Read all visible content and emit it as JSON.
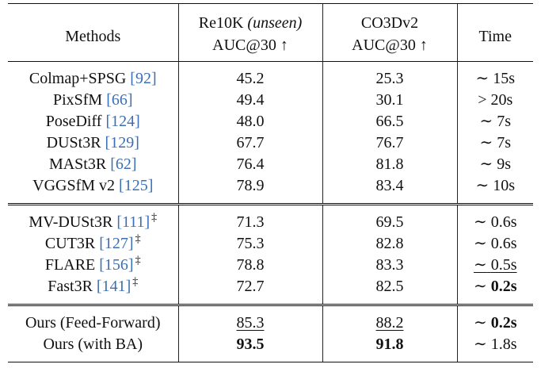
{
  "header": {
    "methods": "Methods",
    "re10k_name": "Re10K",
    "re10k_note": "(unseen)",
    "re10k_metric": "AUC@30 ↑",
    "co3d_name": "CO3Dv2",
    "co3d_metric": "AUC@30 ↑",
    "time": "Time"
  },
  "sections": [
    {
      "rows": [
        {
          "method": "Colmap+SPSG",
          "ref": "[92]",
          "dagger": "",
          "re10k": "45.2",
          "co3d": "25.3",
          "time_sym": "∼",
          "time": "15s",
          "style": {}
        },
        {
          "method": "PixSfM",
          "ref": "[66]",
          "dagger": "",
          "re10k": "49.4",
          "co3d": "30.1",
          "time_sym": ">",
          "time": "20s",
          "style": {}
        },
        {
          "method": "PoseDiff",
          "ref": "[124]",
          "dagger": "",
          "re10k": "48.0",
          "co3d": "66.5",
          "time_sym": "∼",
          "time": "7s",
          "style": {}
        },
        {
          "method": "DUSt3R",
          "ref": "[129]",
          "dagger": "",
          "re10k": "67.7",
          "co3d": "76.7",
          "time_sym": "∼",
          "time": "7s",
          "style": {}
        },
        {
          "method": "MASt3R",
          "ref": "[62]",
          "dagger": "",
          "re10k": "76.4",
          "co3d": "81.8",
          "time_sym": "∼",
          "time": "9s",
          "style": {}
        },
        {
          "method": "VGGSfM v2",
          "ref": "[125]",
          "dagger": "",
          "re10k": "78.9",
          "co3d": "83.4",
          "time_sym": "∼",
          "time": "10s",
          "style": {}
        }
      ]
    },
    {
      "rows": [
        {
          "method": "MV-DUSt3R",
          "ref": "[111]",
          "dagger": "‡",
          "re10k": "71.3",
          "co3d": "69.5",
          "time_sym": "∼",
          "time": "0.6s",
          "style": {}
        },
        {
          "method": "CUT3R",
          "ref": "[127]",
          "dagger": "‡",
          "re10k": "75.3",
          "co3d": "82.8",
          "time_sym": "∼",
          "time": "0.6s",
          "style": {}
        },
        {
          "method": "FLARE",
          "ref": "[156]",
          "dagger": "‡",
          "re10k": "78.8",
          "co3d": "83.3",
          "time_sym": "∼",
          "time": "0.5s",
          "style": {
            "time": "ul"
          }
        },
        {
          "method": "Fast3R",
          "ref": "[141]",
          "dagger": "‡",
          "re10k": "72.7",
          "co3d": "82.5",
          "time_sym": "∼",
          "time": "0.2s",
          "style": {
            "time": "bold"
          }
        }
      ]
    },
    {
      "rows": [
        {
          "method": "Ours (Feed-Forward)",
          "ref": "",
          "dagger": "",
          "re10k": "85.3",
          "co3d": "88.2",
          "time_sym": "∼",
          "time": "0.2s",
          "style": {
            "re10k": "ul",
            "co3d": "ul",
            "time": "bold"
          }
        },
        {
          "method": "Ours (with BA)",
          "ref": "",
          "dagger": "",
          "re10k": "93.5",
          "co3d": "91.8",
          "time_sym": "∼",
          "time": "1.8s",
          "style": {
            "re10k": "bold",
            "co3d": "bold"
          }
        }
      ]
    }
  ]
}
